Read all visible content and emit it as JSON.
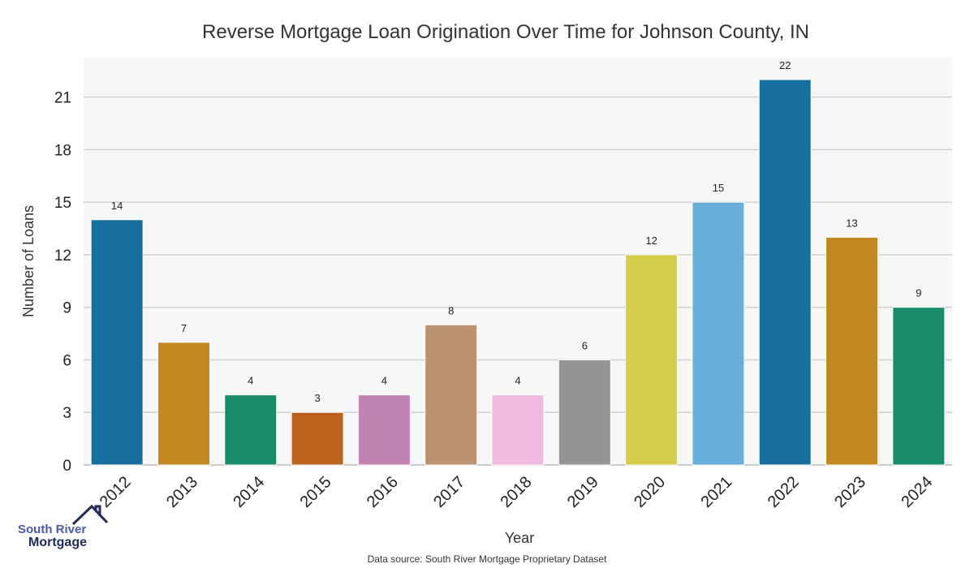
{
  "chart_data": {
    "type": "bar",
    "title": "Reverse Mortgage Loan Origination Over Time for Johnson County, IN",
    "xlabel": "Year",
    "ylabel": "Number of Loans",
    "categories": [
      "2012",
      "2013",
      "2014",
      "2015",
      "2016",
      "2017",
      "2018",
      "2019",
      "2020",
      "2021",
      "2022",
      "2023",
      "2024"
    ],
    "values": [
      14,
      7,
      4,
      3,
      4,
      8,
      4,
      6,
      12,
      15,
      22,
      13,
      9
    ],
    "colors": [
      "#176fa0",
      "#c3871f",
      "#178b6a",
      "#bb621e",
      "#c283b5",
      "#bc9270",
      "#f0b9e0",
      "#959595",
      "#d6cd4b",
      "#66afd9",
      "#176fa0",
      "#c3871f",
      "#178b6a"
    ],
    "yticks": [
      0,
      3,
      6,
      9,
      12,
      15,
      18,
      21
    ],
    "ylim": [
      0,
      23.3
    ],
    "grid": true,
    "source": "Data source: South River Mortgage Proprietary Dataset"
  },
  "logo": {
    "line1": "South River",
    "line2": "Mortgage"
  }
}
